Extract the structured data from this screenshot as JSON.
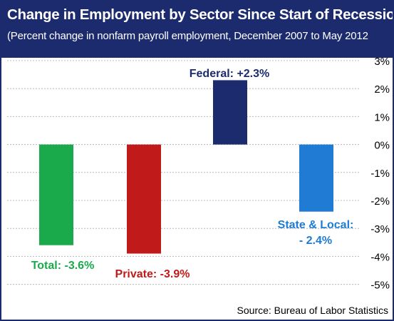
{
  "header": {
    "title": "Change in Employment  by Sector Since Start of Recession",
    "subtitle": "(Percent change in nonfarm payroll employment, December 2007 to May 2012"
  },
  "source": "Source: Bureau of Labor Statistics",
  "colors": {
    "header_bg": "#1c2b6e",
    "header_text": "#ffffff",
    "gridline": "#b8b8b8"
  },
  "chart_data": {
    "type": "bar",
    "title": "Change in Employment  by Sector Since Start of Recession",
    "subtitle": "(Percent change in nonfarm payroll employment, December 2007 to May 2012",
    "categories": [
      "Total",
      "Private",
      "Federal",
      "State & Local"
    ],
    "values": [
      -3.6,
      -3.9,
      2.3,
      -2.4
    ],
    "unit": "%",
    "ylim": [
      -5,
      3
    ],
    "yticks": [
      {
        "value": 3,
        "label": "3%"
      },
      {
        "value": 2,
        "label": "2%"
      },
      {
        "value": 1,
        "label": "1%"
      },
      {
        "value": 0,
        "label": "0%"
      },
      {
        "value": -1,
        "label": "-1%"
      },
      {
        "value": -2,
        "label": "-2%"
      },
      {
        "value": -3,
        "label": "-3%"
      },
      {
        "value": -4,
        "label": "-4%"
      },
      {
        "value": -5,
        "label": "-5%"
      }
    ],
    "grid": true,
    "bar_colors": [
      "#1aaa4c",
      "#c01a1a",
      "#1c2b6e",
      "#1f7bd3"
    ],
    "data_labels": [
      {
        "lines": [
          "Total: -3.6%"
        ],
        "color": "#1aaa4c"
      },
      {
        "lines": [
          "Private: -3.9%"
        ],
        "color": "#c01a1a"
      },
      {
        "lines": [
          "Federal: +2.3%"
        ],
        "color": "#1c2b6e"
      },
      {
        "lines": [
          "State & Local:",
          "- 2.4%"
        ],
        "color": "#1f7bd3"
      }
    ],
    "source": "Source: Bureau of Labor Statistics"
  }
}
